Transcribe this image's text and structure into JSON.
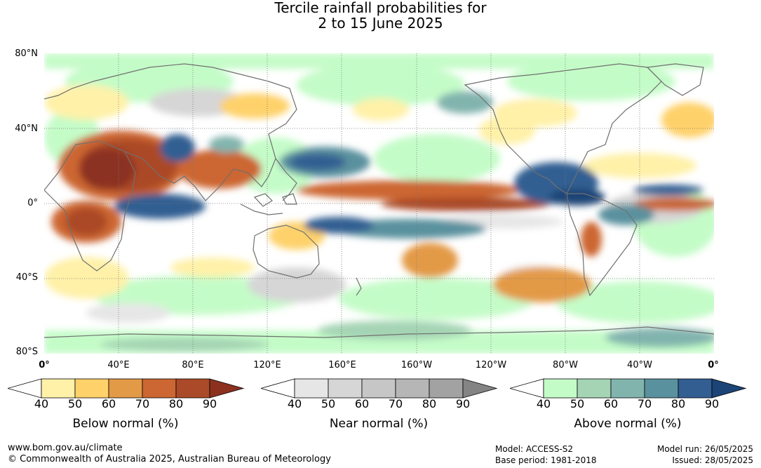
{
  "title": {
    "line1": "Tercile rainfall probabilities for",
    "line2": "2 to 15 June 2025"
  },
  "map": {
    "y_axis_labels": [
      "80°N",
      "40°N",
      "0°",
      "40°S",
      "80°S"
    ],
    "x_axis_labels": [
      "0°",
      "40°E",
      "80°E",
      "120°E",
      "160°E",
      "160°W",
      "120°W",
      "80°W",
      "40°W",
      "0°"
    ],
    "grid": "dotted"
  },
  "colorbars": [
    {
      "title": "Below normal (%)",
      "ticks": [
        "40",
        "50",
        "60",
        "70",
        "80",
        "90"
      ],
      "colors": [
        "#fff1a8",
        "#fed16a",
        "#e39a46",
        "#cc6632",
        "#ab4a28",
        "#8c3120"
      ]
    },
    {
      "title": "Near normal (%)",
      "ticks": [
        "40",
        "50",
        "60",
        "70",
        "80",
        "90"
      ],
      "colors": [
        "#e6e6e6",
        "#d6d6d6",
        "#c6c6c6",
        "#b6b6b6",
        "#a2a2a2",
        "#848484"
      ]
    },
    {
      "title": "Above normal (%)",
      "ticks": [
        "40",
        "50",
        "60",
        "70",
        "80",
        "90"
      ],
      "colors": [
        "#c4fcc8",
        "#a4d4b4",
        "#82b4ae",
        "#5a919e",
        "#325e92",
        "#1c4476"
      ]
    }
  ],
  "footer": {
    "website": "www.bom.gov.au/climate",
    "copyright": "© Commonwealth of Australia 2025, Australian Bureau of Meteorology",
    "model": "Model: ACCESS-S2",
    "base_period": "Base period: 1981-2018",
    "model_run": "Model run: 26/05/2025",
    "issued": "Issued: 28/05/2025"
  }
}
